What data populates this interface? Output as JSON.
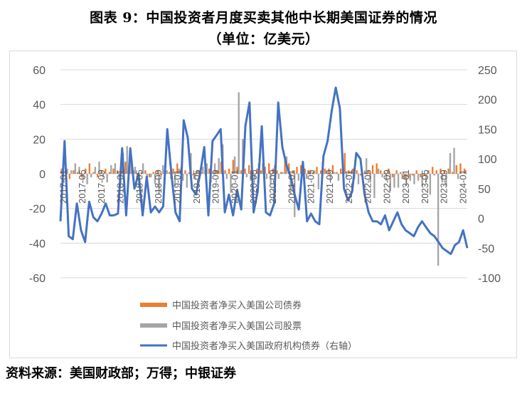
{
  "title_line1": "图表 9：中国投资者月度买卖其他中长期美国证券的情况",
  "title_line2": "（单位：亿美元）",
  "source": "资料来源：美国财政部；万得；中银证券",
  "colors": {
    "corporate_bonds": "#ED7D31",
    "corporate_stocks": "#A5A5A5",
    "gov_agency_bonds": "#4472C4",
    "axis_text": "#595959",
    "gridline": "#d9d9d9"
  },
  "chart_data": {
    "type": "bar+line",
    "left_axis": {
      "ylim": [
        -60,
        60
      ],
      "ticks": [
        "60",
        "40",
        "20",
        "0",
        "-20",
        "-40",
        "-60"
      ]
    },
    "right_axis": {
      "ylim": [
        -100,
        250
      ],
      "ticks": [
        "250",
        "200",
        "150",
        "100",
        "50",
        "0",
        "-50",
        "-100"
      ]
    },
    "x_tick_labels": [
      "2017-01",
      "2017-05",
      "2017-09",
      "2018-01",
      "2018-05",
      "2018-09",
      "2019-01",
      "2019-05",
      "2019-09",
      "2020-01",
      "2020-05",
      "2020-09",
      "2021-01",
      "2021-05",
      "2021-09",
      "2022-01",
      "2022-05",
      "2022-09",
      "2023-01",
      "2023-05",
      "2023-09",
      "2024-01"
    ],
    "legend": [
      "中国投资者净买入美国公司债券",
      "中国投资者净买入美国公司股票",
      "中国投资者净买入美国政府机构债券（右轴）"
    ],
    "series": [
      {
        "name": "中国投资者净买入美国公司债券",
        "axis": "left",
        "values": [
          3,
          2,
          -3,
          2,
          1,
          -2,
          3,
          6,
          1,
          -2,
          2,
          3,
          1,
          3,
          2,
          4,
          7,
          3,
          2,
          -3,
          1,
          2,
          -2,
          1,
          2,
          -1,
          2,
          1,
          3,
          6,
          4,
          2,
          1,
          -1,
          2,
          1,
          2,
          3,
          1,
          2,
          7,
          2,
          3,
          8,
          4,
          2,
          3,
          5,
          1,
          3,
          2,
          4,
          6,
          3,
          2,
          1,
          8,
          6,
          2,
          4,
          5,
          3,
          2,
          1,
          4,
          2,
          3,
          3,
          5,
          1,
          3,
          12,
          2,
          3,
          2,
          -1,
          1,
          2,
          5,
          6,
          2,
          1,
          3,
          -2,
          2,
          1,
          -3,
          -2,
          -1,
          2,
          -2,
          -1,
          2,
          4,
          2,
          3,
          2,
          3,
          1,
          5,
          6,
          3
        ]
      },
      {
        "name": "中国投资者净买入美国公司股票",
        "axis": "left",
        "values": [
          -2,
          3,
          2,
          6,
          4,
          -3,
          -6,
          -2,
          4,
          7,
          -2,
          -5,
          5,
          6,
          -2,
          12,
          16,
          11,
          4,
          -8,
          6,
          -3,
          -2,
          -6,
          -12,
          5,
          2,
          -3,
          -7,
          3,
          -4,
          -8,
          12,
          -3,
          2,
          4,
          6,
          -5,
          6,
          9,
          17,
          -3,
          -11,
          10,
          47,
          20,
          -2,
          -4,
          -3,
          6,
          6,
          -3,
          -6,
          5,
          -3,
          1,
          10,
          -12,
          -25,
          -4,
          3,
          -3,
          2,
          2,
          -9,
          7,
          2,
          -4,
          1,
          -4,
          1,
          -2,
          1,
          -3,
          -6,
          -2,
          9,
          -5,
          -14,
          3,
          -2,
          -4,
          -10,
          -8,
          -8,
          -3,
          -7,
          -4,
          -6,
          -4,
          -7,
          -5,
          -12,
          -1,
          -53,
          -5,
          -7,
          12,
          15,
          -3
        ]
      },
      {
        "name": "中国投资者净买入美国政府机构债券（右轴）",
        "axis": "right",
        "values": [
          -5,
          130,
          -30,
          -35,
          25,
          -20,
          -40,
          28,
          2,
          -5,
          8,
          25,
          5,
          5,
          8,
          118,
          5,
          118,
          50,
          75,
          5,
          70,
          10,
          20,
          10,
          20,
          150,
          75,
          10,
          -5,
          165,
          135,
          50,
          40,
          75,
          120,
          5,
          130,
          140,
          150,
          10,
          40,
          5,
          48,
          15,
          155,
          195,
          10,
          45,
          155,
          10,
          5,
          25,
          195,
          120,
          90,
          70,
          40,
          15,
          95,
          -5,
          8,
          -5,
          -10,
          105,
          130,
          180,
          220,
          185,
          50,
          30,
          45,
          110,
          100,
          40,
          10,
          -5,
          -5,
          -10,
          5,
          -20,
          -5,
          10,
          -10,
          -20,
          -25,
          -30,
          -15,
          -5,
          -15,
          -25,
          -30,
          -40,
          -50,
          -55,
          -60,
          -45,
          -40,
          -20,
          -50
        ]
      }
    ]
  }
}
